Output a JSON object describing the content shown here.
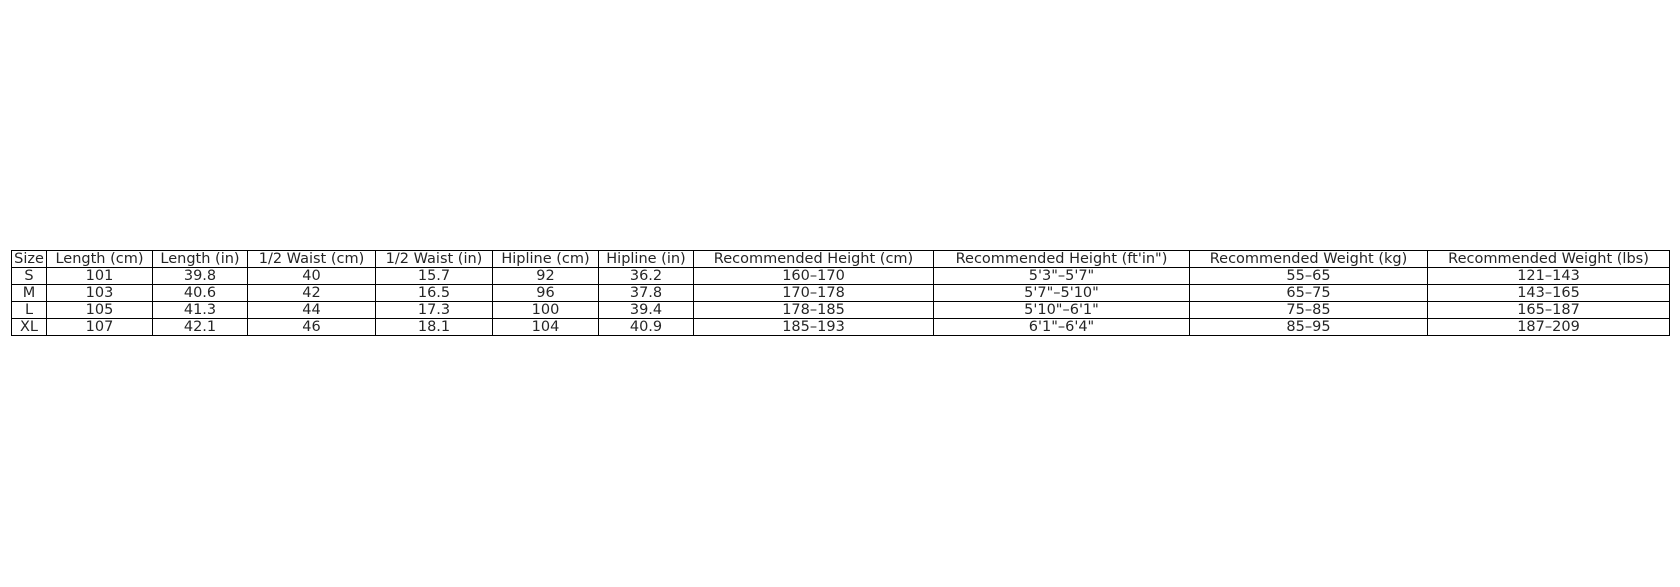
{
  "table": {
    "headers": [
      "Size",
      "Length (cm)",
      "Length (in)",
      "1/2 Waist (cm)",
      "1/2 Waist (in)",
      "Hipline (cm)",
      "Hipline (in)",
      "Recommended Height (cm)",
      "Recommended Height (ft'in\")",
      "Recommended Weight (kg)",
      "Recommended Weight (lbs)"
    ],
    "rows": [
      [
        "S",
        "101",
        "39.8",
        "40",
        "15.7",
        "92",
        "36.2",
        "160–170",
        "5'3\"–5'7\"",
        "55–65",
        "121–143"
      ],
      [
        "M",
        "103",
        "40.6",
        "42",
        "16.5",
        "96",
        "37.8",
        "170–178",
        "5'7\"–5'10\"",
        "65–75",
        "143–165"
      ],
      [
        "L",
        "105",
        "41.3",
        "44",
        "17.3",
        "100",
        "39.4",
        "178–185",
        "5'10\"–6'1\"",
        "75–85",
        "165–187"
      ],
      [
        "XL",
        "107",
        "42.1",
        "46",
        "18.1",
        "104",
        "40.9",
        "185–193",
        "6'1\"–6'4\"",
        "85–95",
        "187–209"
      ]
    ]
  }
}
